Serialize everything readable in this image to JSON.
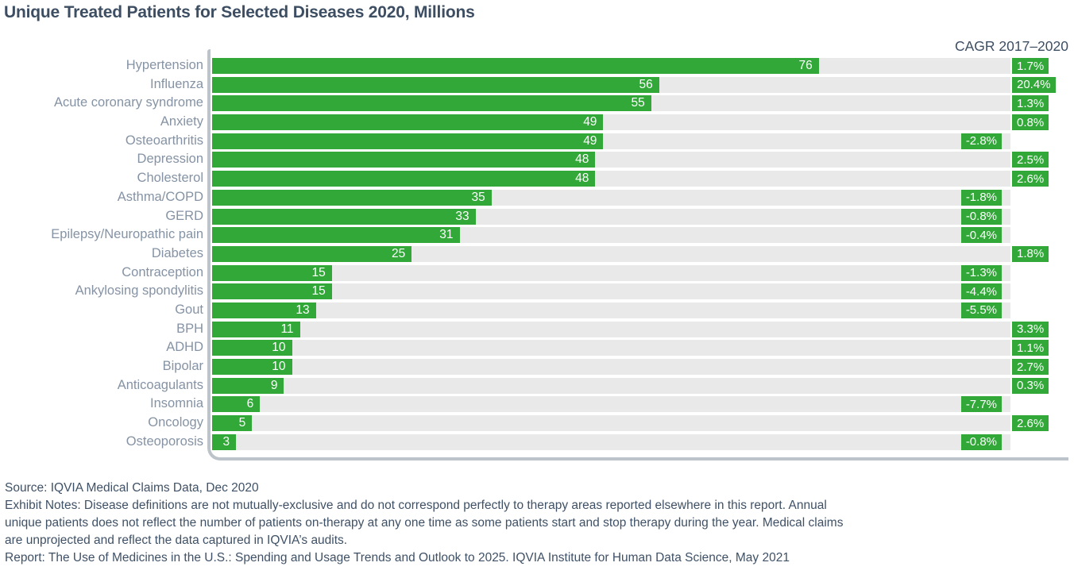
{
  "colors": {
    "bar_green": "#31a838",
    "track_gray": "#e9e9e9",
    "axis_gray": "#bdc3cb",
    "label_gray": "#8593a4",
    "heading_dark": "#3d4e63",
    "footer_text": "#3f5166",
    "value_text": "#ffffff"
  },
  "chart_data": {
    "type": "bar",
    "orientation": "horizontal",
    "title": "Unique Treated Patients for Selected Diseases 2020, Millions",
    "cagr_header": "CAGR 2017–2020",
    "xlim": [
      0,
      100
    ],
    "grid": "off",
    "legend": "none",
    "value_labels_shown": true,
    "categories": [
      "Hypertension",
      "Influenza",
      "Acute coronary syndrome",
      "Anxiety",
      "Osteoarthritis",
      "Depression",
      "Cholesterol",
      "Asthma/COPD",
      "GERD",
      "Epilepsy/Neuropathic pain",
      "Diabetes",
      "Contraception",
      "Ankylosing spondylitis",
      "Gout",
      "BPH",
      "ADHD",
      "Bipolar",
      "Anticoagulants",
      "Insomnia",
      "Oncology",
      "Osteoporosis"
    ],
    "series": [
      {
        "name": "Unique treated patients 2020 (millions)",
        "values": [
          76,
          56,
          55,
          49,
          49,
          48,
          48,
          35,
          33,
          31,
          25,
          15,
          15,
          13,
          11,
          10,
          10,
          9,
          6,
          5,
          3
        ]
      },
      {
        "name": "CAGR 2017–2020 (%)",
        "values": [
          1.7,
          20.4,
          1.3,
          0.8,
          -2.8,
          2.5,
          2.6,
          -1.8,
          -0.8,
          -0.4,
          1.8,
          -1.3,
          -4.4,
          -5.5,
          3.3,
          1.1,
          2.7,
          0.3,
          -7.7,
          2.6,
          -0.8
        ]
      }
    ],
    "cagr_display": [
      "1.7%",
      "20.4%",
      "1.3%",
      "0.8%",
      "-2.8%",
      "2.5%",
      "2.6%",
      "-1.8%",
      "-0.8%",
      "-0.4%",
      "1.8%",
      "-1.3%",
      "-4.4%",
      "-5.5%",
      "3.3%",
      "1.1%",
      "2.7%",
      "0.3%",
      "-7.7%",
      "2.6%",
      "-0.8%"
    ]
  },
  "footer": {
    "source": "Source: IQVIA Medical Claims Data, Dec 2020",
    "notes_lines": [
      "Exhibit Notes: Disease definitions are not mutually-exclusive and do not correspond perfectly to therapy areas reported elsewhere in this report. Annual",
      "unique patients does not reflect the number of patients on-therapy at any one time as some patients start and stop therapy during the year. Medical claims",
      "are unprojected and reflect the data captured in IQVIA’s audits."
    ],
    "report": "Report: The Use of Medicines in the U.S.: Spending and Usage Trends and Outlook to 2025. IQVIA Institute for Human Data Science, May 2021"
  }
}
